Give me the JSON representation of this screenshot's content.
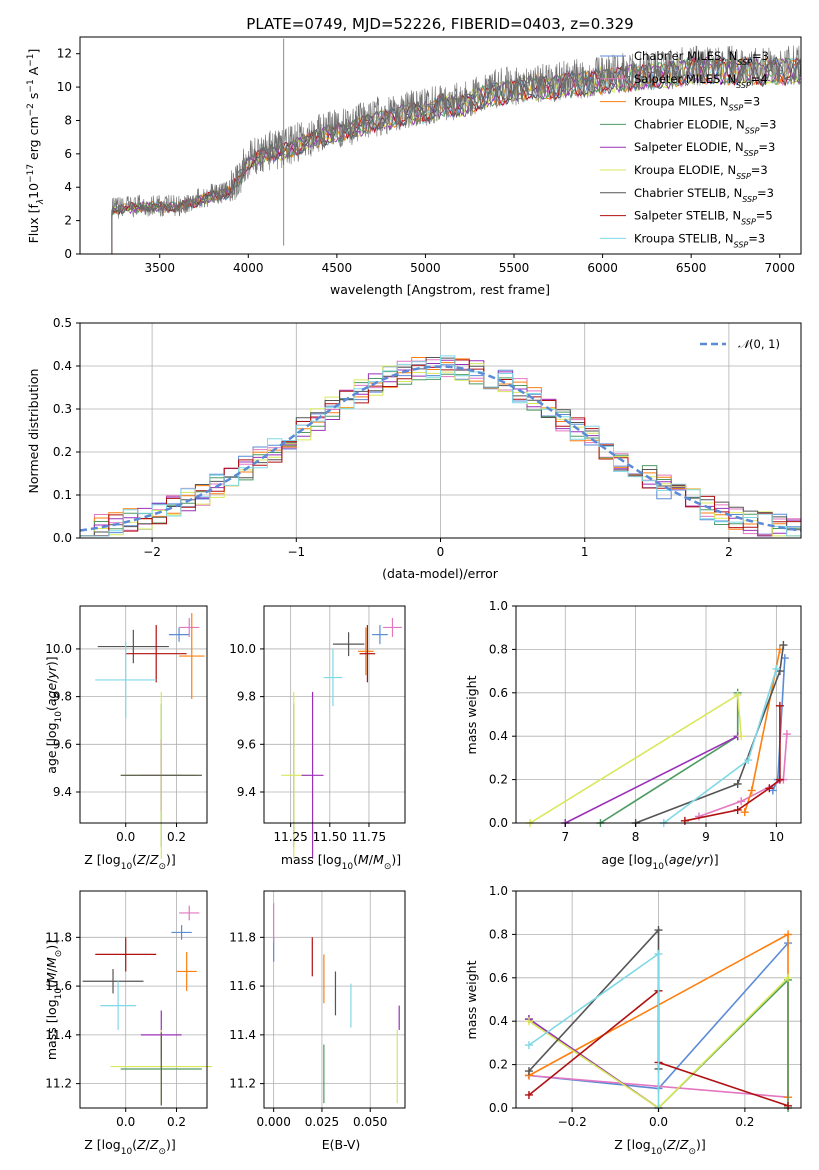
{
  "figure_title": "PLATE=0749, MJD=52226, FIBERID=0403, z=0.329",
  "colors": [
    "#5b8bd6",
    "#e377c2",
    "#ff7f0e",
    "#4e9a62",
    "#9b30b8",
    "#d9e75a",
    "#555555",
    "#b01010",
    "#7fd8e6"
  ],
  "chart_data": [
    {
      "id": "spectrum",
      "type": "line",
      "title": "PLATE=0749, MJD=52226, FIBERID=0403, z=0.329",
      "xlabel": "wavelength [Angstrom, rest frame]",
      "ylabel": "Flux [f_λ 10^-17 erg cm^-2 s^-1 A^-1]",
      "xlim": [
        3050,
        7120
      ],
      "ylim": [
        0,
        13
      ],
      "xticks": [
        "3500",
        "4000",
        "4500",
        "5000",
        "5500",
        "6000",
        "6500",
        "7000"
      ],
      "yticks": [
        "0",
        "2",
        "4",
        "6",
        "8",
        "10",
        "12"
      ],
      "legend": "top-right",
      "series": [
        {
          "name": "Chabrier MILES, N_SSP=3"
        },
        {
          "name": "Salpeter MILES, N_SSP=4"
        },
        {
          "name": "Kroupa MILES, N_SSP=3"
        },
        {
          "name": "Chabrier ELODIE, N_SSP=3"
        },
        {
          "name": "Salpeter ELODIE, N_SSP=3"
        },
        {
          "name": "Kroupa ELODIE, N_SSP=3"
        },
        {
          "name": "Chabrier STELIB, N_SSP=3"
        },
        {
          "name": "Salpeter STELIB, N_SSP=5"
        },
        {
          "name": "Kroupa STELIB, N_SSP=3"
        }
      ],
      "continuum": {
        "x": [
          3230,
          3300,
          3400,
          3500,
          3600,
          3700,
          3800,
          3900,
          4000,
          4100,
          4200,
          4300,
          4400,
          4500,
          4600,
          4700,
          4800,
          4900,
          5000,
          5100,
          5200,
          5300,
          5400,
          5500,
          5600,
          5700,
          5800,
          5900,
          6000,
          6100,
          6200,
          6300,
          6400,
          6500,
          6600,
          6700,
          6800,
          6900,
          7000
        ],
        "y": [
          2.7,
          2.8,
          2.9,
          2.9,
          2.9,
          3.2,
          3.6,
          3.8,
          5.6,
          6.2,
          6.3,
          6.8,
          7.2,
          7.5,
          7.7,
          8.2,
          8.3,
          8.7,
          8.7,
          9.2,
          9.1,
          9.6,
          9.9,
          10.1,
          10.3,
          10.2,
          10.5,
          10.5,
          10.7,
          10.8,
          10.9,
          11.0,
          11.1,
          11.3,
          11.3,
          11.3,
          11.3,
          11.2,
          11.3
        ]
      },
      "grid": false
    },
    {
      "id": "residual-hist",
      "type": "bar",
      "xlabel": "(data-model)/error",
      "ylabel": "Normed distribution",
      "xlim": [
        -2.5,
        2.5
      ],
      "ylim": [
        0,
        0.5
      ],
      "xticks": [
        "−2",
        "−1",
        "0",
        "1",
        "2"
      ],
      "yticks": [
        "0.0",
        "0.1",
        "0.2",
        "0.3",
        "0.4",
        "0.5"
      ],
      "legend": "top-right",
      "legend_label": "N(0,1)",
      "bin_width": 0.1,
      "grid": true
    },
    {
      "id": "age-vs-Z",
      "type": "scatter",
      "xlabel": "Z [log10(Z/Z⊙)]",
      "ylabel": "age [log10(age/yr)]",
      "xlim": [
        -0.18,
        0.32
      ],
      "ylim": [
        9.27,
        10.18
      ],
      "xticks": [
        {
          "v": 0,
          "t": "0.0"
        },
        {
          "v": 0.2,
          "t": "0.2"
        }
      ],
      "yticks": [
        {
          "v": 9.4,
          "t": "9.4"
        },
        {
          "v": 9.6,
          "t": "9.6"
        },
        {
          "v": 9.8,
          "t": "9.8"
        },
        {
          "v": 10.0,
          "t": "10.0"
        }
      ],
      "points": [
        {
          "c": 0,
          "x": 0.21,
          "y": 10.06,
          "xe": 0.04,
          "ye": 0.03
        },
        {
          "c": 1,
          "x": 0.25,
          "y": 10.09,
          "xe": 0.04,
          "ye": 0.04
        },
        {
          "c": 2,
          "x": 0.26,
          "y": 9.97,
          "xe": 0.05,
          "ye": 0.18
        },
        {
          "c": 3,
          "x": 0.14,
          "y": 9.47,
          "xe": 0.14,
          "ye": 0.3
        },
        {
          "c": 4,
          "x": 0.14,
          "y": 9.47,
          "xe": 0.08,
          "ye": 0.15
        },
        {
          "c": 5,
          "x": 0.14,
          "y": 9.47,
          "xe": 0.16,
          "ye": 0.35
        },
        {
          "c": 6,
          "x": 0.03,
          "y": 10.01,
          "xe": 0.14,
          "ye": 0.07
        },
        {
          "c": 7,
          "x": 0.12,
          "y": 9.98,
          "xe": 0.12,
          "ye": 0.12
        },
        {
          "c": 8,
          "x": 0.0,
          "y": 9.87,
          "xe": 0.12,
          "ye": 0.16
        },
        {
          "c": 6,
          "x": 0.14,
          "y": 9.47,
          "xe": 0.16,
          "ye": 0.0
        }
      ]
    },
    {
      "id": "age-vs-mass",
      "type": "scatter",
      "xlabel": "mass [log10(M/M⊙)]",
      "ylabel": "",
      "xlim": [
        11.08,
        11.98
      ],
      "ylim": [
        9.27,
        10.18
      ],
      "xticks": [
        {
          "v": 11.25,
          "t": "11.25"
        },
        {
          "v": 11.5,
          "t": "11.50"
        },
        {
          "v": 11.75,
          "t": "11.75"
        }
      ],
      "yticks": [
        {
          "v": 9.4,
          "t": "9.4"
        },
        {
          "v": 9.6,
          "t": "9.6"
        },
        {
          "v": 9.8,
          "t": "9.8"
        },
        {
          "v": 10.0,
          "t": "10.0"
        }
      ],
      "points": [
        {
          "c": 0,
          "x": 11.82,
          "y": 10.06,
          "xe": 0.05,
          "ye": 0.04
        },
        {
          "c": 1,
          "x": 11.9,
          "y": 10.09,
          "xe": 0.06,
          "ye": 0.04
        },
        {
          "c": 2,
          "x": 11.73,
          "y": 9.99,
          "xe": 0.05,
          "ye": 0.1
        },
        {
          "c": 3,
          "x": 11.27,
          "y": 9.47,
          "xe": 0.0,
          "ye": 0.3
        },
        {
          "c": 4,
          "x": 11.39,
          "y": 9.47,
          "xe": 0.0,
          "ye": 0.35
        },
        {
          "c": 5,
          "x": 11.27,
          "y": 9.47,
          "xe": 0.08,
          "ye": 0.35
        },
        {
          "c": 6,
          "x": 11.62,
          "y": 10.02,
          "xe": 0.1,
          "ye": 0.05
        },
        {
          "c": 7,
          "x": 11.74,
          "y": 9.98,
          "xe": 0.05,
          "ye": 0.12
        },
        {
          "c": 8,
          "x": 11.52,
          "y": 9.88,
          "xe": 0.06,
          "ye": 0.12
        },
        {
          "c": 4,
          "x": 11.39,
          "y": 9.47,
          "xe": 0.07,
          "ye": 0.0
        }
      ]
    },
    {
      "id": "massweight-vs-age",
      "type": "line",
      "xlabel": "age [log10(age/yr)]",
      "ylabel": "mass weight",
      "xlim": [
        6.3,
        10.35
      ],
      "ylim": [
        0,
        1
      ],
      "xticks": [
        {
          "v": 7,
          "t": "7"
        },
        {
          "v": 8,
          "t": "8"
        },
        {
          "v": 9,
          "t": "9"
        },
        {
          "v": 10,
          "t": "10"
        }
      ],
      "yticks": [
        {
          "v": 0,
          "t": "0.0"
        },
        {
          "v": 0.2,
          "t": "0.2"
        },
        {
          "v": 0.4,
          "t": "0.4"
        },
        {
          "v": 0.6,
          "t": "0.6"
        },
        {
          "v": 0.8,
          "t": "0.8"
        },
        {
          "v": 1.0,
          "t": "1.0"
        }
      ],
      "series": [
        {
          "c": 0,
          "x": [
            9.95,
            10.02,
            10.12
          ],
          "y": [
            0.15,
            0.2,
            0.76
          ]
        },
        {
          "c": 1,
          "x": 9.0,
          "xs": [
            8.9,
            9.5,
            10.1,
            10.15
          ],
          "y": [
            0.03,
            0.1,
            0.2,
            0.41
          ]
        },
        {
          "c": 2,
          "x": [
            9.55,
            9.65,
            10.05
          ],
          "y": [
            0.05,
            0.15,
            0.8
          ]
        },
        {
          "c": 3,
          "x": [
            7.5,
            9.45,
            9.45
          ],
          "y": [
            0.0,
            0.4,
            0.6
          ]
        },
        {
          "c": 4,
          "x": [
            7.0,
            9.45
          ],
          "y": [
            0.0,
            0.4
          ]
        },
        {
          "c": 5,
          "x": [
            6.5,
            9.45,
            9.5
          ],
          "y": [
            0.0,
            0.59,
            0.4
          ]
        },
        {
          "c": 6,
          "x": [
            8.0,
            9.45,
            10.05,
            10.1
          ],
          "y": [
            0.0,
            0.18,
            0.7,
            0.82
          ]
        },
        {
          "c": 7,
          "x": [
            8.7,
            9.45,
            9.9,
            10.05,
            10.05
          ],
          "y": [
            0.01,
            0.06,
            0.16,
            0.2,
            0.54
          ]
        },
        {
          "c": 8,
          "x": [
            8.4,
            9.6,
            10.0
          ],
          "y": [
            0.0,
            0.29,
            0.71
          ]
        }
      ]
    },
    {
      "id": "mass-vs-Z",
      "type": "scatter",
      "xlabel": "Z [log10(Z/Z⊙)]",
      "ylabel": "mass [log10(M/M⊙)]",
      "xlim": [
        -0.18,
        0.32
      ],
      "ylim": [
        11.1,
        11.99
      ],
      "xticks": [
        {
          "v": 0,
          "t": "0.0"
        },
        {
          "v": 0.2,
          "t": "0.2"
        }
      ],
      "yticks": [
        {
          "v": 11.2,
          "t": "11.2"
        },
        {
          "v": 11.4,
          "t": "11.4"
        },
        {
          "v": 11.6,
          "t": "11.6"
        },
        {
          "v": 11.8,
          "t": "11.8"
        }
      ],
      "points": [
        {
          "c": 0,
          "x": 0.22,
          "y": 11.82,
          "xe": 0.04,
          "ye": 0.03
        },
        {
          "c": 1,
          "x": 0.25,
          "y": 11.9,
          "xe": 0.04,
          "ye": 0.03
        },
        {
          "c": 2,
          "x": 0.24,
          "y": 11.66,
          "xe": 0.04,
          "ye": 0.08
        },
        {
          "c": 3,
          "x": 0.14,
          "y": 11.26,
          "xe": 0.16,
          "ye": 0.0
        },
        {
          "c": 4,
          "x": 0.14,
          "y": 11.4,
          "xe": 0.08,
          "ye": 0.1
        },
        {
          "c": 5,
          "x": 0.14,
          "y": 11.27,
          "xe": 0.2,
          "ye": 0.15
        },
        {
          "c": 6,
          "x": -0.05,
          "y": 11.62,
          "xe": 0.12,
          "ye": 0.05
        },
        {
          "c": 7,
          "x": 0.0,
          "y": 11.73,
          "xe": 0.12,
          "ye": 0.07
        },
        {
          "c": 8,
          "x": -0.03,
          "y": 11.52,
          "xe": 0.07,
          "ye": 0.1
        },
        {
          "c": 6,
          "x": 0.14,
          "y": 11.26,
          "xe": 0.0,
          "ye": 0.15
        }
      ]
    },
    {
      "id": "mass-vs-EBV",
      "type": "scatter",
      "xlabel": "E(B-V)",
      "ylabel": "",
      "xlim": [
        -0.005,
        0.068
      ],
      "ylim": [
        11.1,
        11.99
      ],
      "xticks": [
        {
          "v": 0,
          "t": "0.000"
        },
        {
          "v": 0.025,
          "t": "0.025"
        },
        {
          "v": 0.05,
          "t": "0.050"
        }
      ],
      "yticks": [
        {
          "v": 11.2,
          "t": "11.2"
        },
        {
          "v": 11.4,
          "t": "11.4"
        },
        {
          "v": 11.6,
          "t": "11.6"
        },
        {
          "v": 11.8,
          "t": "11.8"
        }
      ],
      "points": [
        {
          "c": 0,
          "x": 0.0,
          "y": 11.75,
          "xe": 0,
          "ye": 0.05
        },
        {
          "c": 1,
          "x": 0.0,
          "y": 11.86,
          "xe": 0,
          "ye": 0.08
        },
        {
          "c": 2,
          "x": 0.026,
          "y": 11.63,
          "xe": 0,
          "ye": 0.1
        },
        {
          "c": 3,
          "x": 0.026,
          "y": 11.24,
          "xe": 0,
          "ye": 0.12
        },
        {
          "c": 4,
          "x": 0.065,
          "y": 11.47,
          "xe": 0,
          "ye": 0.05
        },
        {
          "c": 5,
          "x": 0.064,
          "y": 11.27,
          "xe": 0,
          "ye": 0.15
        },
        {
          "c": 6,
          "x": 0.032,
          "y": 11.57,
          "xe": 0,
          "ye": 0.09
        },
        {
          "c": 7,
          "x": 0.02,
          "y": 11.72,
          "xe": 0,
          "ye": 0.08
        },
        {
          "c": 8,
          "x": 0.04,
          "y": 11.52,
          "xe": 0,
          "ye": 0.09
        }
      ]
    },
    {
      "id": "massweight-vs-Z",
      "type": "line",
      "xlabel": "Z [log10(Z/Z⊙)]",
      "ylabel": "mass weight",
      "xlim": [
        -0.33,
        0.33
      ],
      "ylim": [
        0,
        1
      ],
      "xticks": [
        {
          "v": -0.2,
          "t": "−0.2"
        },
        {
          "v": 0,
          "t": "0.0"
        },
        {
          "v": 0.2,
          "t": "0.2"
        }
      ],
      "yticks": [
        {
          "v": 0,
          "t": "0.0"
        },
        {
          "v": 0.2,
          "t": "0.2"
        },
        {
          "v": 0.4,
          "t": "0.4"
        },
        {
          "v": 0.6,
          "t": "0.6"
        },
        {
          "v": 0.8,
          "t": "0.8"
        },
        {
          "v": 1.0,
          "t": "1.0"
        }
      ],
      "series": [
        {
          "c": 0,
          "x": [
            -0.3,
            0.0,
            0.3
          ],
          "y": [
            0.15,
            0.09,
            0.76
          ]
        },
        {
          "c": 1,
          "x": [
            -0.3,
            0.0,
            0.3
          ],
          "y": [
            0.15,
            0.1,
            0.05
          ]
        },
        {
          "c": 2,
          "x": [
            -0.3,
            0.3,
            0.3
          ],
          "y": [
            0.15,
            0.8,
            0.05
          ]
        },
        {
          "c": 3,
          "x": [
            -0.3,
            0.0,
            0.3,
            0.3
          ],
          "y": [
            0.41,
            0.0,
            0.59,
            0.0
          ]
        },
        {
          "c": 4,
          "x": [
            -0.3,
            0.0
          ],
          "y": [
            0.41,
            0.0
          ]
        },
        {
          "c": 5,
          "x": [
            -0.3,
            0.0,
            0.3
          ],
          "y": [
            0.4,
            0.0,
            0.6
          ]
        },
        {
          "c": 6,
          "x": [
            -0.3,
            0.0,
            0.0
          ],
          "y": [
            0.17,
            0.82,
            0.18
          ]
        },
        {
          "c": 7,
          "x": [
            -0.3,
            0.0,
            0.0,
            0.3
          ],
          "y": [
            0.06,
            0.54,
            0.21,
            0.01
          ]
        },
        {
          "c": 8,
          "x": [
            -0.3,
            0.0,
            0.0
          ],
          "y": [
            0.29,
            0.71,
            0.0
          ]
        }
      ]
    }
  ]
}
